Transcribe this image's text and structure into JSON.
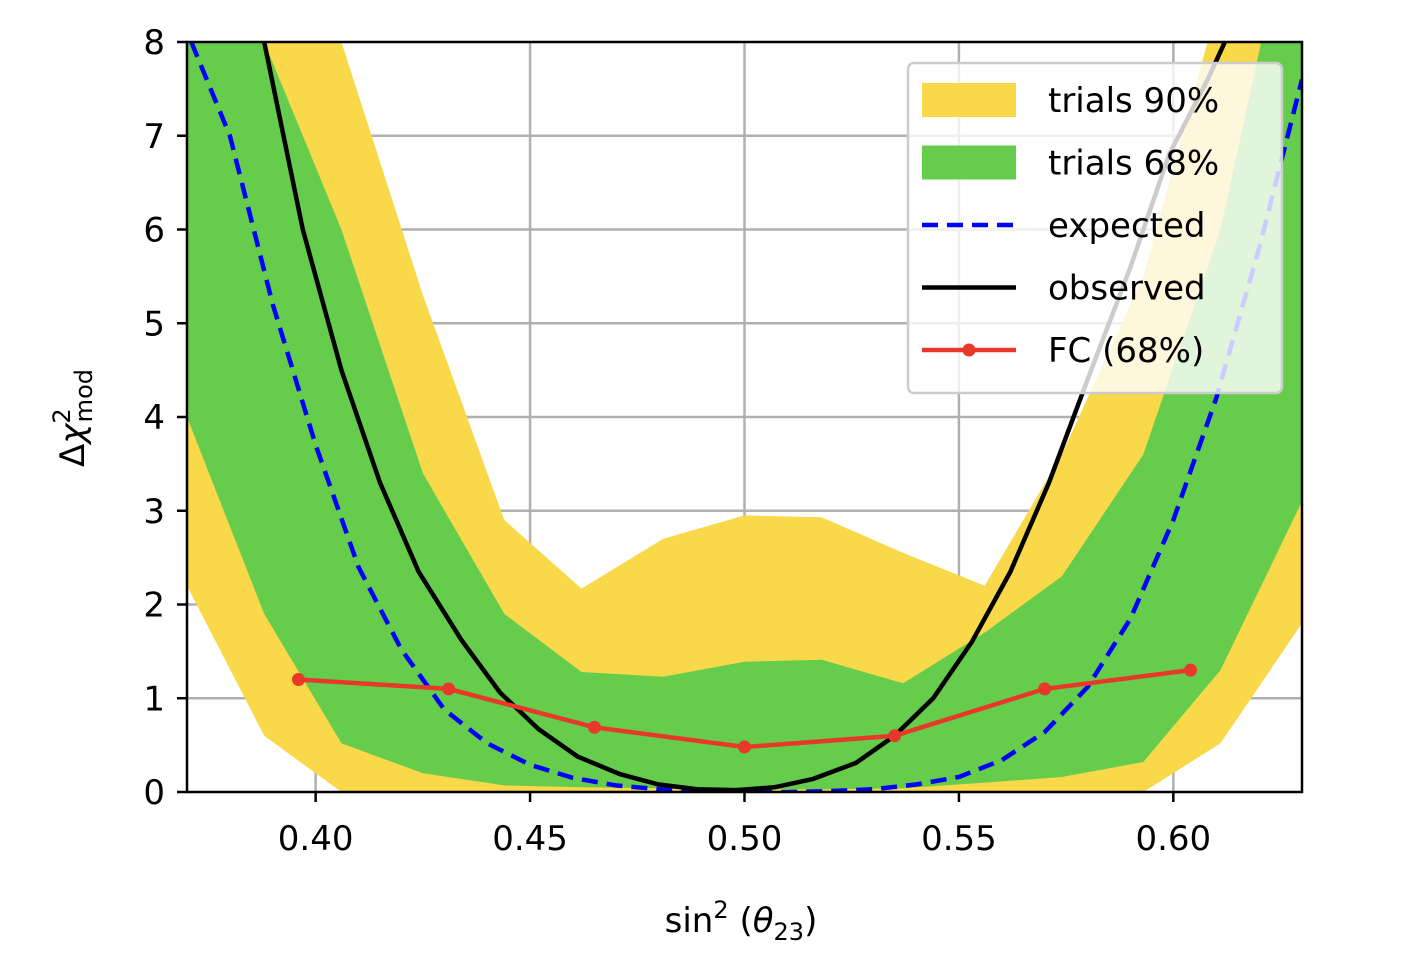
{
  "chart_data": {
    "type": "line",
    "xlabel": {
      "pre": "sin",
      "sup": "2",
      "mid": " (",
      "theta": "θ",
      "sub": "23",
      "post": ")"
    },
    "ylabel": {
      "delta": "Δ",
      "chi": "χ",
      "sup": "2",
      "sub": "mod"
    },
    "xlim": [
      0.37,
      0.63
    ],
    "ylim": [
      0,
      8
    ],
    "x_ticks": [
      0.4,
      0.45,
      0.5,
      0.55,
      0.6
    ],
    "x_tick_labels": [
      "0.40",
      "0.45",
      "0.50",
      "0.55",
      "0.60"
    ],
    "y_ticks": [
      0,
      1,
      2,
      3,
      4,
      5,
      6,
      7,
      8
    ],
    "y_tick_labels": [
      "0",
      "1",
      "2",
      "3",
      "4",
      "5",
      "6",
      "7",
      "8"
    ],
    "grid": true,
    "legend_position": "top-right",
    "colors": {
      "band90": "#f9d84a",
      "band68": "#66cc4c",
      "expected": "#0000ff",
      "observed": "#000000",
      "fc": "#e8382a"
    },
    "band90": {
      "name": "trials 90%",
      "x": [
        0.37,
        0.388,
        0.406,
        0.425,
        0.444,
        0.462,
        0.481,
        0.5,
        0.518,
        0.537,
        0.556,
        0.574,
        0.593,
        0.611,
        0.63
      ],
      "upper": [
        12.0,
        11.0,
        8.0,
        5.3,
        2.9,
        2.17,
        2.7,
        2.95,
        2.93,
        2.55,
        2.2,
        3.6,
        5.5,
        8.5,
        12.0
      ],
      "lower": [
        2.2,
        0.6,
        0.0,
        0.0,
        0.0,
        0.0,
        0.0,
        0.0,
        0.0,
        0.0,
        0.0,
        0.0,
        0.0,
        0.52,
        1.8
      ]
    },
    "band68": {
      "name": "trials 68%",
      "x": [
        0.37,
        0.388,
        0.406,
        0.425,
        0.444,
        0.462,
        0.481,
        0.5,
        0.518,
        0.537,
        0.556,
        0.574,
        0.593,
        0.611,
        0.63
      ],
      "upper": [
        10.0,
        8.0,
        6.0,
        3.4,
        1.9,
        1.28,
        1.23,
        1.39,
        1.41,
        1.16,
        1.7,
        2.3,
        3.6,
        6.0,
        10.0
      ],
      "lower": [
        4.0,
        1.9,
        0.52,
        0.2,
        0.07,
        0.05,
        0.04,
        0.03,
        0.03,
        0.04,
        0.1,
        0.16,
        0.32,
        1.3,
        3.1
      ]
    },
    "series": [
      {
        "name": "expected",
        "style": "dashed",
        "x": [
          0.371,
          0.38,
          0.39,
          0.4,
          0.41,
          0.42,
          0.43,
          0.44,
          0.45,
          0.46,
          0.47,
          0.48,
          0.49,
          0.5,
          0.51,
          0.52,
          0.53,
          0.54,
          0.55,
          0.56,
          0.57,
          0.58,
          0.59,
          0.6,
          0.61,
          0.62,
          0.63
        ],
        "y": [
          8.0,
          7.0,
          5.2,
          3.7,
          2.4,
          1.52,
          0.88,
          0.52,
          0.29,
          0.15,
          0.07,
          0.03,
          0.01,
          0.0,
          0.0,
          0.01,
          0.03,
          0.08,
          0.16,
          0.34,
          0.64,
          1.12,
          1.85,
          2.9,
          4.2,
          5.8,
          7.6
        ]
      },
      {
        "name": "observed",
        "style": "solid",
        "x": [
          0.388,
          0.397,
          0.406,
          0.415,
          0.424,
          0.434,
          0.443,
          0.452,
          0.461,
          0.471,
          0.48,
          0.489,
          0.498,
          0.507,
          0.516,
          0.526,
          0.535,
          0.544,
          0.553,
          0.562,
          0.571,
          0.58,
          0.59,
          0.599,
          0.608,
          0.617,
          0.626
        ],
        "y": [
          8.0,
          6.0,
          4.5,
          3.3,
          2.35,
          1.62,
          1.06,
          0.67,
          0.38,
          0.19,
          0.08,
          0.03,
          0.02,
          0.05,
          0.14,
          0.31,
          0.6,
          1.0,
          1.6,
          2.35,
          3.3,
          4.4,
          5.6,
          6.8,
          7.6,
          8.5,
          9.5
        ]
      },
      {
        "name": "FC (68%)",
        "style": "solid-marker",
        "x": [
          0.396,
          0.431,
          0.465,
          0.5,
          0.535,
          0.57,
          0.604
        ],
        "y": [
          1.2,
          1.1,
          0.69,
          0.48,
          0.6,
          1.1,
          1.3
        ]
      }
    ]
  }
}
